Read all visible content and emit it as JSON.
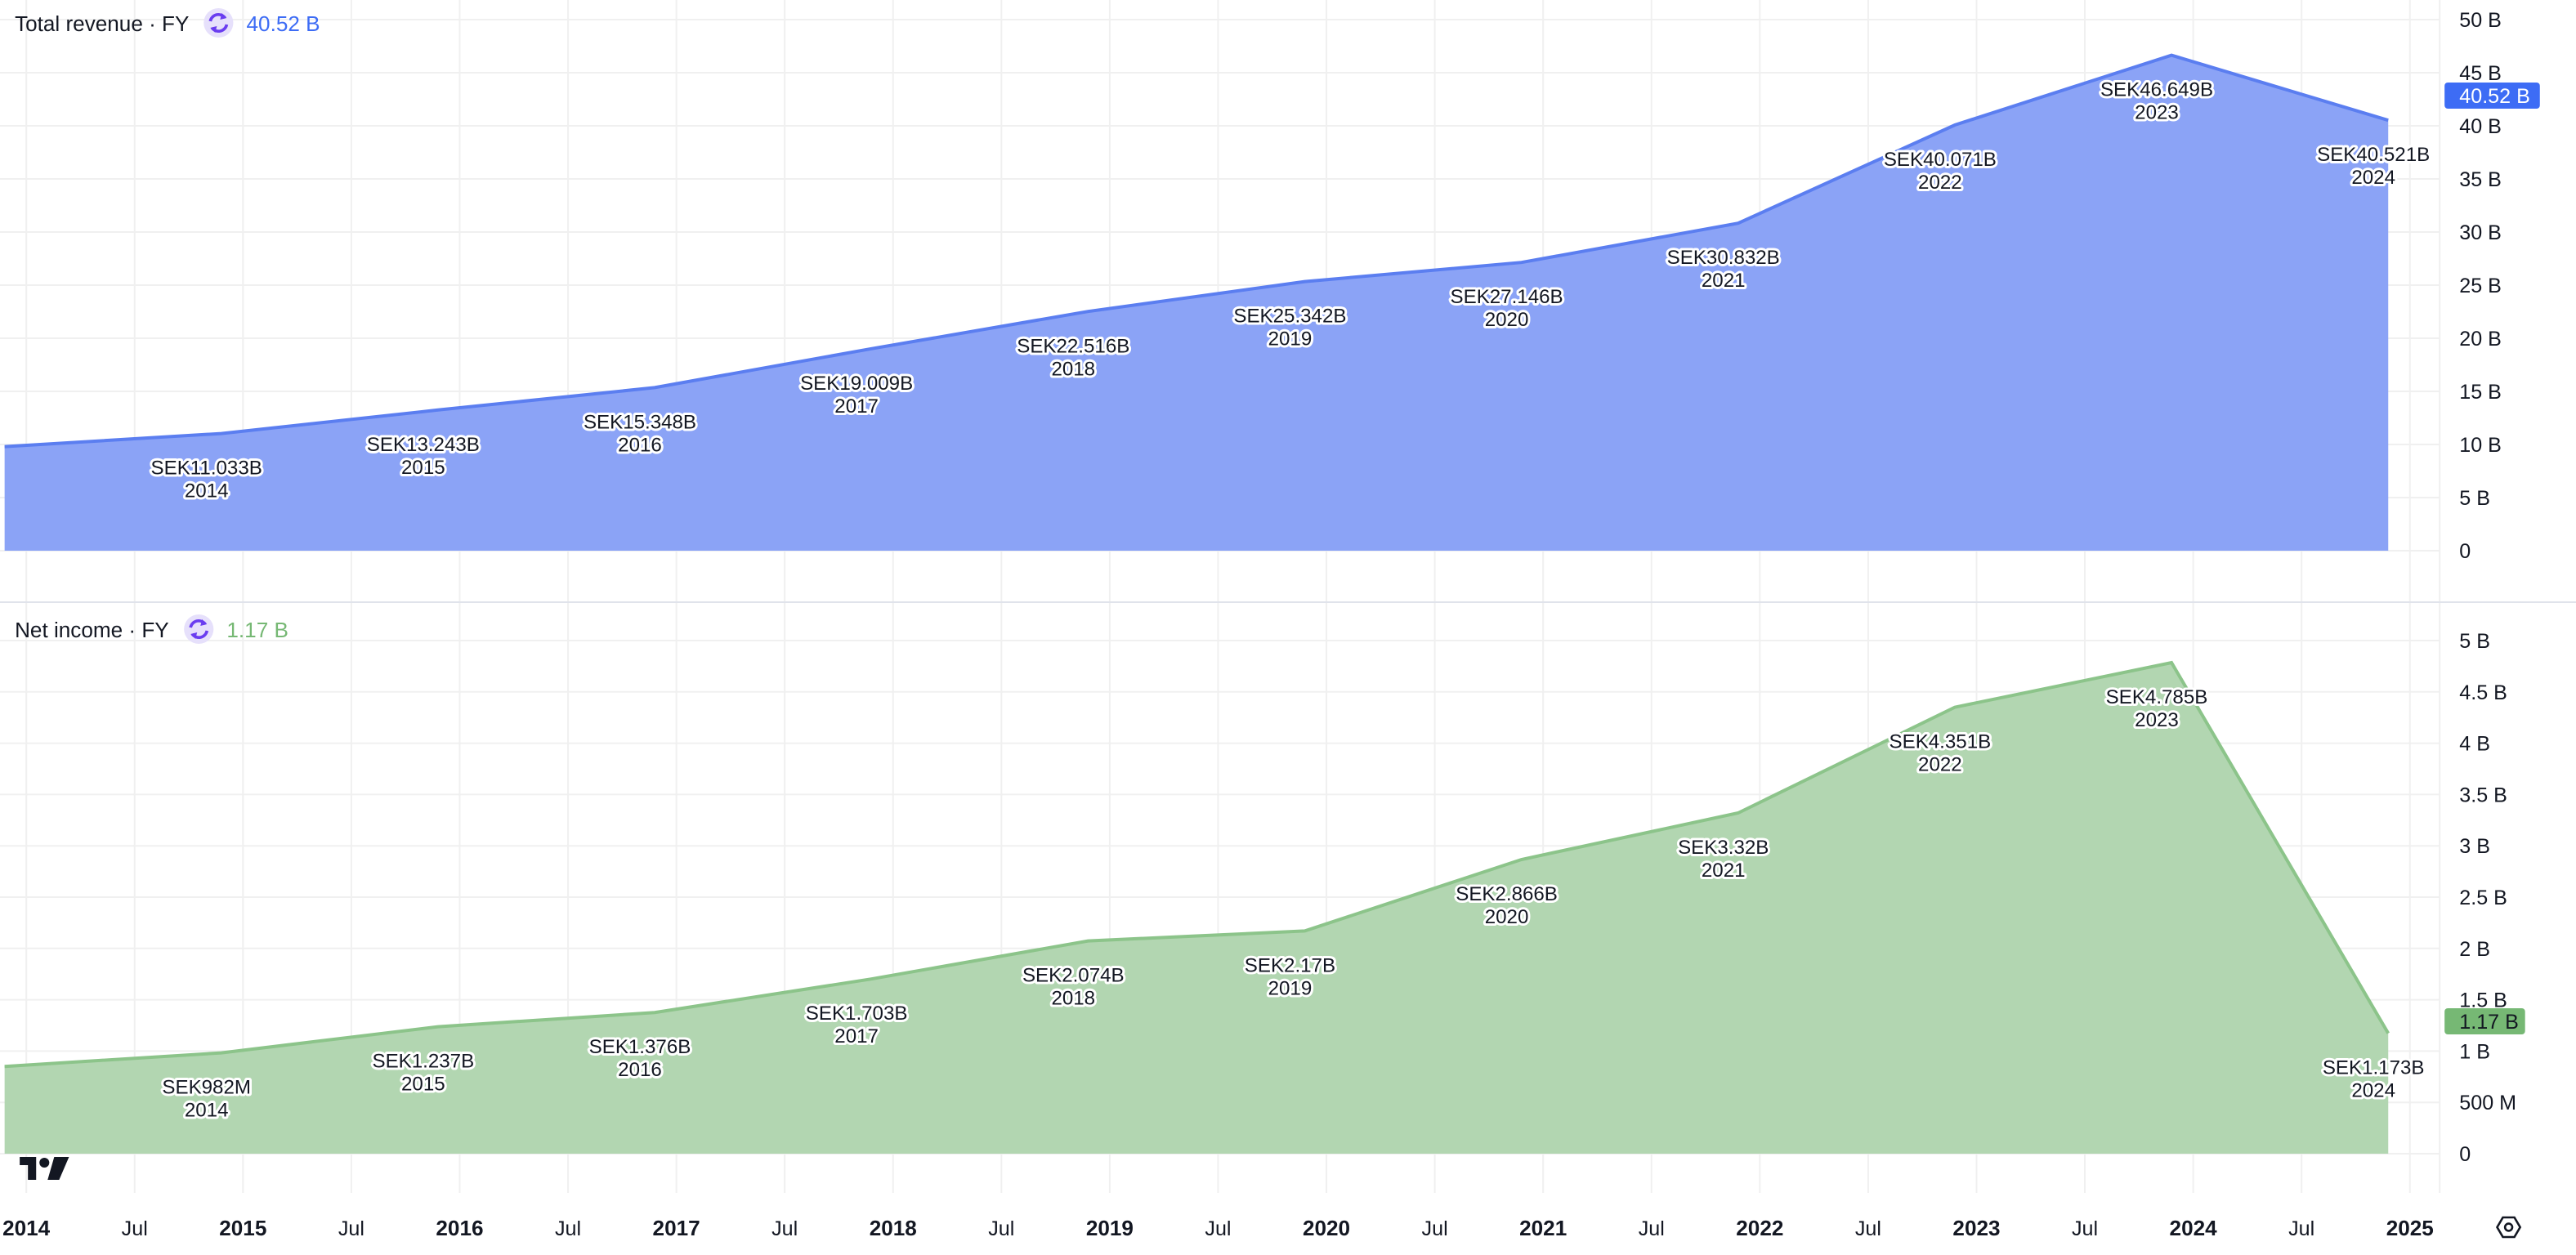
{
  "colors": {
    "revenue_line": "#5b7ef0",
    "revenue_fill": "#859ef5",
    "revenue_badge": "#3d6cf5",
    "income_line": "#8cc48a",
    "income_fill": "#aed4ad",
    "income_badge": "#76b874",
    "icon_bg": "#e6e0fb",
    "icon_fg": "#6a3df0"
  },
  "panes": [
    {
      "title": "Total revenue · FY",
      "icon": "refresh-icon",
      "last_value": "40.52 B",
      "badge": "40.52 B"
    },
    {
      "title": "Net income · FY",
      "icon": "refresh-icon",
      "last_value": "1.17 B",
      "badge": "1.17 B"
    }
  ],
  "chart_data": [
    {
      "type": "area",
      "title": "Total revenue · FY",
      "x": [
        2013,
        2014,
        2015,
        2016,
        2017,
        2018,
        2019,
        2020,
        2021,
        2022,
        2023,
        2024
      ],
      "values": [
        9.8,
        11.033,
        13.243,
        15.348,
        19.009,
        22.516,
        25.342,
        27.146,
        30.832,
        40.071,
        46.649,
        40.521
      ],
      "data_labels": [
        "",
        "SEK11.033B",
        "SEK13.243B",
        "SEK15.348B",
        "SEK19.009B",
        "SEK22.516B",
        "SEK25.342B",
        "SEK27.146B",
        "SEK30.832B",
        "SEK40.071B",
        "SEK46.649B",
        "SEK40.521B"
      ],
      "year_labels": [
        "",
        "2014",
        "2015",
        "2016",
        "2017",
        "2018",
        "2019",
        "2020",
        "2021",
        "2022",
        "2023",
        "2024"
      ],
      "unit": "B",
      "ylim": [
        0,
        50
      ],
      "yticks": [
        "50 B",
        "45 B",
        "40 B",
        "35 B",
        "30 B",
        "25 B",
        "20 B",
        "15 B",
        "10 B",
        "5 B",
        "0"
      ],
      "ytick_values": [
        50,
        45,
        40,
        35,
        30,
        25,
        20,
        15,
        10,
        5,
        0
      ],
      "grid": true
    },
    {
      "type": "area",
      "title": "Net income · FY",
      "x": [
        2013,
        2014,
        2015,
        2016,
        2017,
        2018,
        2019,
        2020,
        2021,
        2022,
        2023,
        2024
      ],
      "values": [
        0.85,
        0.982,
        1.237,
        1.376,
        1.703,
        2.074,
        2.17,
        2.866,
        3.32,
        4.351,
        4.785,
        1.173
      ],
      "data_labels": [
        "",
        "SEK982M",
        "SEK1.237B",
        "SEK1.376B",
        "SEK1.703B",
        "SEK2.074B",
        "SEK2.17B",
        "SEK2.866B",
        "SEK3.32B",
        "SEK4.351B",
        "SEK4.785B",
        "SEK1.173B"
      ],
      "year_labels": [
        "",
        "2014",
        "2015",
        "2016",
        "2017",
        "2018",
        "2019",
        "2020",
        "2021",
        "2022",
        "2023",
        "2024"
      ],
      "unit": "B",
      "ylim": [
        0,
        5
      ],
      "yticks": [
        "5 B",
        "4.5 B",
        "4 B",
        "3.5 B",
        "3 B",
        "2.5 B",
        "2 B",
        "1.5 B",
        "1 B",
        "500 M",
        "0"
      ],
      "ytick_values": [
        5,
        4.5,
        4,
        3.5,
        3,
        2.5,
        2,
        1.5,
        1,
        0.5,
        0
      ],
      "grid": true
    }
  ],
  "x_axis": {
    "ticks": [
      "2014",
      "Jul",
      "2015",
      "Jul",
      "2016",
      "Jul",
      "2017",
      "Jul",
      "2018",
      "Jul",
      "2019",
      "Jul",
      "2020",
      "Jul",
      "2021",
      "Jul",
      "2022",
      "Jul",
      "2023",
      "Jul",
      "2024",
      "Jul",
      "2025"
    ],
    "tick_values": [
      2014,
      2014.5,
      2015,
      2015.5,
      2016,
      2016.5,
      2017,
      2017.5,
      2018,
      2018.5,
      2019,
      2019.5,
      2020,
      2020.5,
      2021,
      2021.5,
      2022,
      2022.5,
      2023,
      2023.5,
      2024,
      2024.5,
      2025
    ]
  },
  "logo": "TradingView",
  "settings_icon": "settings-icon"
}
